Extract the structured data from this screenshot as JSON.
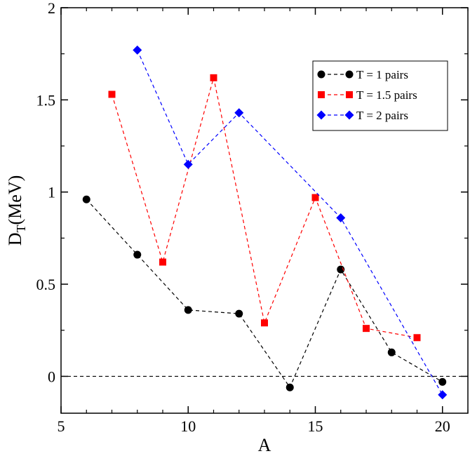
{
  "chart_data": {
    "type": "line",
    "title": "",
    "xlabel": "A",
    "ylabel": "D",
    "ylabel_sub": "T",
    "ylabel_unit": "(MeV)",
    "xlim": [
      5,
      21
    ],
    "ylim": [
      -0.2,
      2
    ],
    "xticks": [
      5,
      10,
      15,
      20
    ],
    "yticks": [
      0,
      0.5,
      1,
      1.5,
      2
    ],
    "xtick_labels": [
      "5",
      "10",
      "15",
      "20"
    ],
    "ytick_labels": [
      "0",
      "0.5",
      "1",
      "1.5",
      "2"
    ],
    "reference_line": {
      "y": 0,
      "style": "dashed",
      "color": "#000000"
    },
    "legend_position": "top-right",
    "series": [
      {
        "name": "T = 1 pairs",
        "marker": "circle",
        "color": "#000000",
        "x": [
          6,
          8,
          10,
          12,
          14,
          16,
          18,
          20
        ],
        "y": [
          0.96,
          0.66,
          0.36,
          0.34,
          -0.06,
          0.58,
          0.13,
          -0.03
        ]
      },
      {
        "name": "T = 1.5 pairs",
        "marker": "square",
        "color": "#ff0000",
        "x": [
          7,
          9,
          11,
          13,
          15,
          17,
          19
        ],
        "y": [
          1.53,
          0.62,
          1.62,
          0.29,
          0.97,
          0.26,
          0.21
        ]
      },
      {
        "name": "T = 2 pairs",
        "marker": "diamond",
        "color": "#0000ff",
        "x": [
          8,
          10,
          12,
          16,
          20
        ],
        "y": [
          1.77,
          1.15,
          1.43,
          0.86,
          -0.1
        ]
      }
    ]
  }
}
